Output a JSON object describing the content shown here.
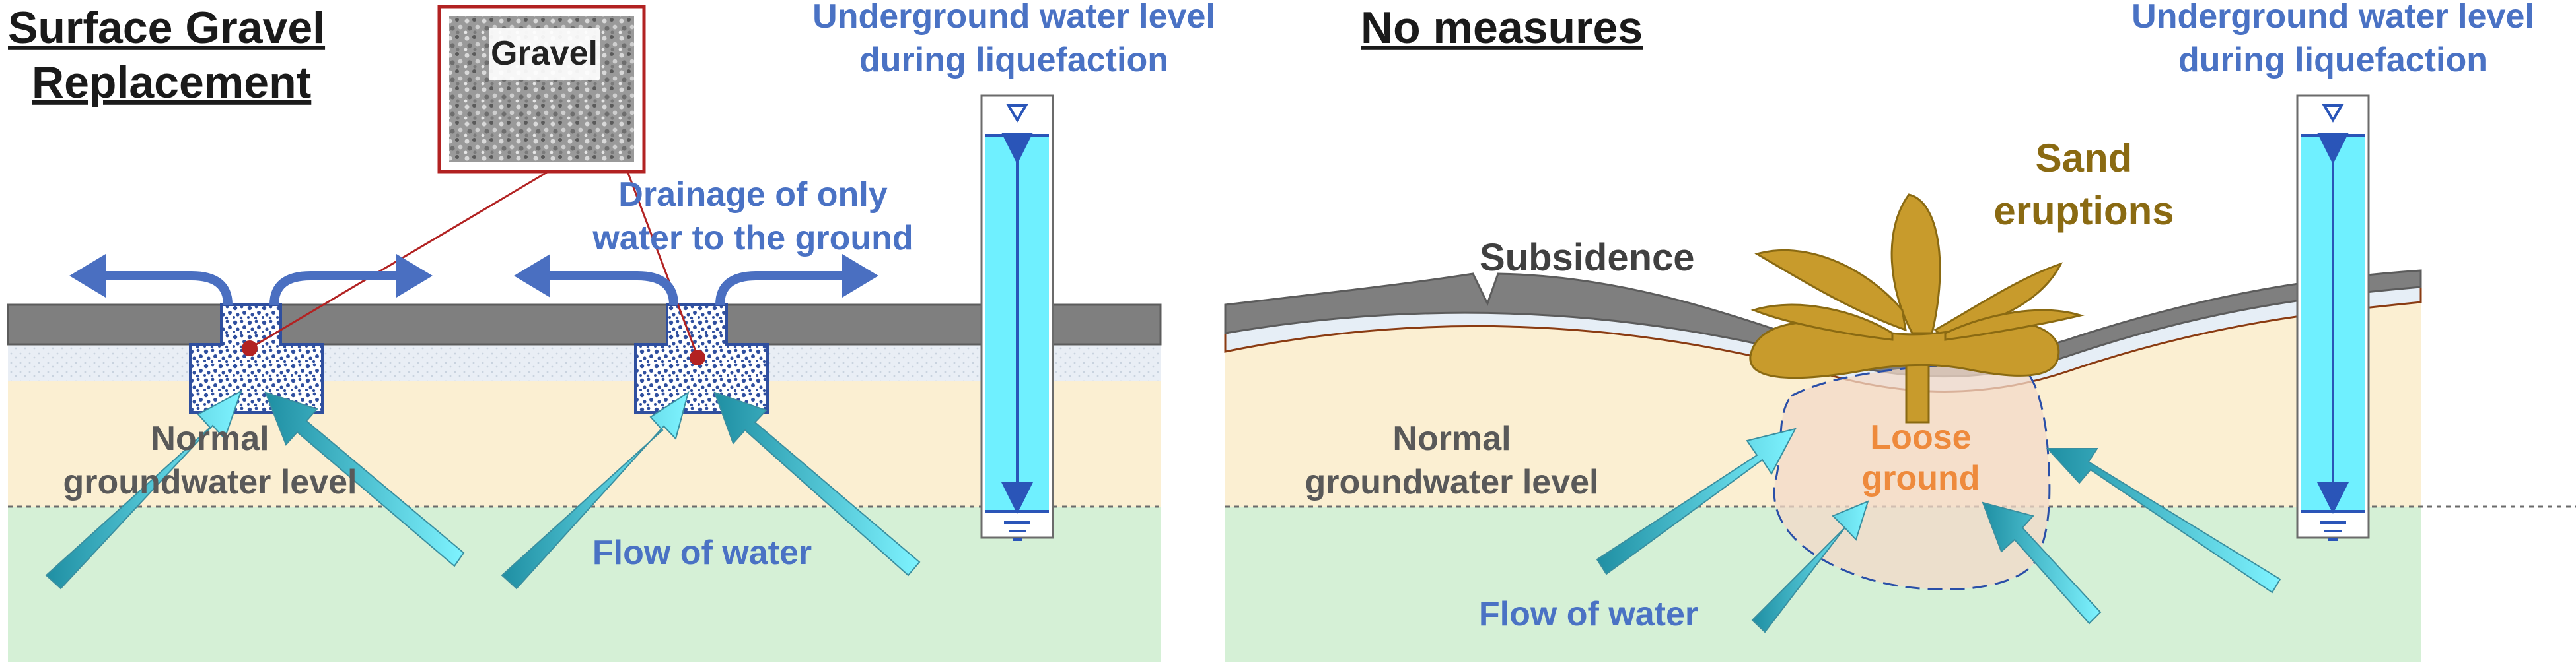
{
  "left_panel": {
    "title_line1": "Surface Gravel",
    "title_line2": "Replacement",
    "inset_label": "Gravel",
    "water_level_line1": "Underground water level",
    "water_level_line2": "during liquefaction",
    "drainage_line1": "Drainage of only",
    "drainage_line2": "water to the ground",
    "normal_line1": "Normal",
    "normal_line2": "groundwater level",
    "flow_label": "Flow of water"
  },
  "right_panel": {
    "title": "No measures",
    "water_level_line1": "Underground water level",
    "water_level_line2": "during liquefaction",
    "sand_line1": "Sand",
    "sand_line2": "eruptions",
    "subsidence": "Subsidence",
    "loose_line1": "Loose",
    "loose_line2": "ground",
    "normal_line1": "Normal",
    "normal_line2": "groundwater level",
    "flow_label": "Flow of water"
  },
  "colors": {
    "pavement": "#7f7f7f",
    "sand": "#fbefd2",
    "groundwater": "#d5f0d6",
    "base_layer": "#e6eef6",
    "gravel_blue": "#2f4f9f",
    "water_column": "#6ff0ff",
    "arrow_blue": "#4a6fc1",
    "flow_arrow": "#2ab3c9",
    "text_gray": "#595959",
    "text_blue": "#4a72c4",
    "sand_eruption": "#c89b2c",
    "loose_orange": "#ee8a3c",
    "red": "#b22222"
  }
}
